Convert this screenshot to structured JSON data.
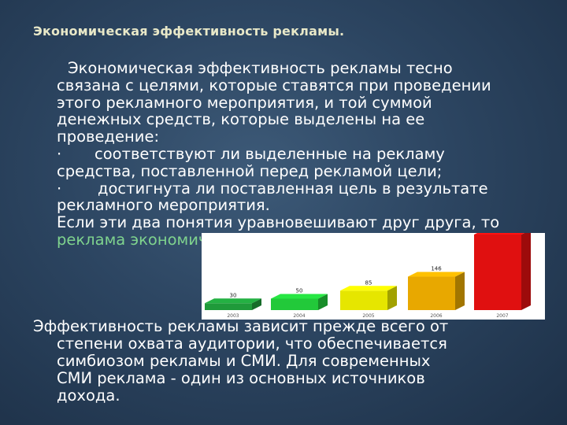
{
  "title": "Экономическая эффективность рекламы.",
  "para1": {
    "lines": [
      "Экономическая эффективность рекламы тесно",
      "связана с целями, которые ставятся при проведении",
      "этого рекламного мероприятия, и той суммой",
      "денежных средств, которые выделены на ее",
      "проведение:"
    ],
    "bullet_char": "·",
    "bullet1_a": "соответствуют ли выделенные на рекламу",
    "bullet1_b": "средства, поставленной перед рекламой цели;",
    "bullet2_a": "достигнута ли поставленная цель в результате",
    "bullet2_b": "рекламного мероприятия.",
    "conclusion": "Если эти два понятия уравновешивают друг друга, то",
    "conclusion_green": "реклама экономически эффективна"
  },
  "chart_data": {
    "type": "bar",
    "categories": [
      "2003",
      "2004",
      "2005",
      "2006",
      "2007"
    ],
    "values": [
      30,
      50,
      85,
      146,
      330
    ],
    "colors": [
      "#1f9a3a",
      "#22c93a",
      "#e6e600",
      "#e8a800",
      "#e01010"
    ],
    "background": "#ffffff",
    "ylim": [
      0,
      330
    ]
  },
  "para2": {
    "lines": [
      "Эффективность рекламы зависит прежде всего от",
      "степени охвата аудитории, что обеспечивается",
      "симбиозом рекламы и СМИ. Для современных",
      "СМИ реклама - один из основных источников",
      "дохода."
    ]
  }
}
